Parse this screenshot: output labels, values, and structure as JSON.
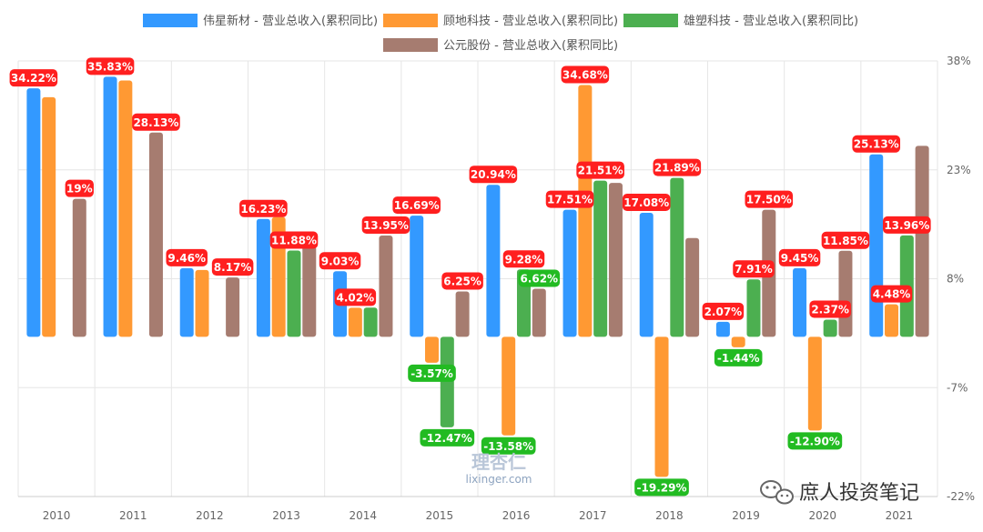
{
  "chart_data": {
    "type": "bar",
    "categories": [
      "2010",
      "2011",
      "2012",
      "2013",
      "2014",
      "2015",
      "2016",
      "2017",
      "2018",
      "2019",
      "2020",
      "2021"
    ],
    "series": [
      {
        "name": "伟星新材 - 营业总收入(累积同比)",
        "color": "#3399ff",
        "label_values": [
          34.22,
          35.83,
          9.46,
          16.23,
          9.03,
          16.69,
          20.94,
          17.51,
          17.08,
          2.07,
          9.45,
          25.13
        ],
        "values": [
          34.22,
          35.83,
          9.46,
          16.23,
          9.03,
          16.69,
          20.94,
          17.51,
          17.08,
          2.07,
          9.45,
          25.13
        ]
      },
      {
        "name": "顾地科技 - 营业总收入(累积同比)",
        "color": "#ff9933",
        "values": [
          33.0,
          35.3,
          9.2,
          16.5,
          4.0,
          -3.57,
          -13.58,
          34.68,
          -19.29,
          -1.44,
          -12.9,
          4.48
        ]
      },
      {
        "name": "雄塑科技 - 营业总收入(累积同比)",
        "color": "#4caf50",
        "values": [
          null,
          null,
          null,
          11.88,
          4.02,
          -12.47,
          9.28,
          21.51,
          21.89,
          7.91,
          2.37,
          13.96
        ]
      },
      {
        "name": "公元股份 - 营业总收入(累积同比)",
        "color": "#a67c70",
        "values": [
          19,
          28.13,
          8.17,
          12.5,
          13.95,
          6.25,
          6.62,
          21.2,
          13.6,
          17.5,
          11.85,
          26.3
        ]
      }
    ],
    "data_labels": [
      {
        "cat": 0,
        "series": 0,
        "text": "34.22%",
        "tone": "pos"
      },
      {
        "cat": 0,
        "series": 3,
        "text": "19%",
        "tone": "pos"
      },
      {
        "cat": 1,
        "series": 0,
        "text": "35.83%",
        "tone": "pos"
      },
      {
        "cat": 1,
        "series": 3,
        "text": "28.13%",
        "tone": "pos"
      },
      {
        "cat": 2,
        "series": 0,
        "text": "9.46%",
        "tone": "pos"
      },
      {
        "cat": 2,
        "series": 3,
        "text": "8.17%",
        "tone": "pos"
      },
      {
        "cat": 3,
        "series": 0,
        "text": "16.23%",
        "tone": "pos"
      },
      {
        "cat": 3,
        "series": 2,
        "text": "11.88%",
        "tone": "pos"
      },
      {
        "cat": 4,
        "series": 0,
        "text": "9.03%",
        "tone": "pos"
      },
      {
        "cat": 4,
        "series": 3,
        "text": "13.95%",
        "tone": "pos"
      },
      {
        "cat": 4,
        "series": 1,
        "text": "4.02%",
        "tone": "pos"
      },
      {
        "cat": 5,
        "series": 0,
        "text": "16.69%",
        "tone": "pos"
      },
      {
        "cat": 5,
        "series": 3,
        "text": "6.25%",
        "tone": "pos"
      },
      {
        "cat": 5,
        "series": 1,
        "text": "-3.57%",
        "tone": "neg"
      },
      {
        "cat": 5,
        "series": 2,
        "text": "-12.47%",
        "tone": "neg"
      },
      {
        "cat": 6,
        "series": 0,
        "text": "20.94%",
        "tone": "pos"
      },
      {
        "cat": 6,
        "series": 2,
        "text": "9.28%",
        "tone": "pos"
      },
      {
        "cat": 6,
        "series": 3,
        "text": "6.62%",
        "tone": "neg"
      },
      {
        "cat": 6,
        "series": 1,
        "text": "-13.58%",
        "tone": "neg"
      },
      {
        "cat": 7,
        "series": 1,
        "text": "34.68%",
        "tone": "pos"
      },
      {
        "cat": 7,
        "series": 0,
        "text": "17.51%",
        "tone": "pos"
      },
      {
        "cat": 7,
        "series": 2,
        "text": "21.51%",
        "tone": "pos"
      },
      {
        "cat": 8,
        "series": 0,
        "text": "17.08%",
        "tone": "pos"
      },
      {
        "cat": 8,
        "series": 2,
        "text": "21.89%",
        "tone": "pos"
      },
      {
        "cat": 8,
        "series": 1,
        "text": "-19.29%",
        "tone": "neg"
      },
      {
        "cat": 9,
        "series": 3,
        "text": "17.50%",
        "tone": "pos"
      },
      {
        "cat": 9,
        "series": 2,
        "text": "7.91%",
        "tone": "pos"
      },
      {
        "cat": 9,
        "series": 0,
        "text": "2.07%",
        "tone": "pos"
      },
      {
        "cat": 9,
        "series": 1,
        "text": "-1.44%",
        "tone": "neg"
      },
      {
        "cat": 10,
        "series": 0,
        "text": "9.45%",
        "tone": "pos"
      },
      {
        "cat": 10,
        "series": 3,
        "text": "11.85%",
        "tone": "pos"
      },
      {
        "cat": 10,
        "series": 2,
        "text": "2.37%",
        "tone": "pos"
      },
      {
        "cat": 10,
        "series": 1,
        "text": "-12.90%",
        "tone": "neg"
      },
      {
        "cat": 11,
        "series": 0,
        "text": "25.13%",
        "tone": "pos"
      },
      {
        "cat": 11,
        "series": 2,
        "text": "13.96%",
        "tone": "pos"
      },
      {
        "cat": 11,
        "series": 1,
        "text": "4.48%",
        "tone": "pos"
      }
    ],
    "y_ticks": [
      "38%",
      "23%",
      "8%",
      "-7%",
      "-22%"
    ],
    "y_tick_values": [
      38,
      23,
      8,
      -7,
      -22
    ],
    "ylim": [
      -22,
      38
    ],
    "y_axis_side": "right",
    "grid": true,
    "legend_placement": "top",
    "label_colors": {
      "pos": "#ff1f1f",
      "neg": "#22bb22"
    }
  },
  "watermark": {
    "logo": "理杏仁",
    "url": "lixinger.com"
  },
  "footer": {
    "text": "庶人投资笔记"
  }
}
